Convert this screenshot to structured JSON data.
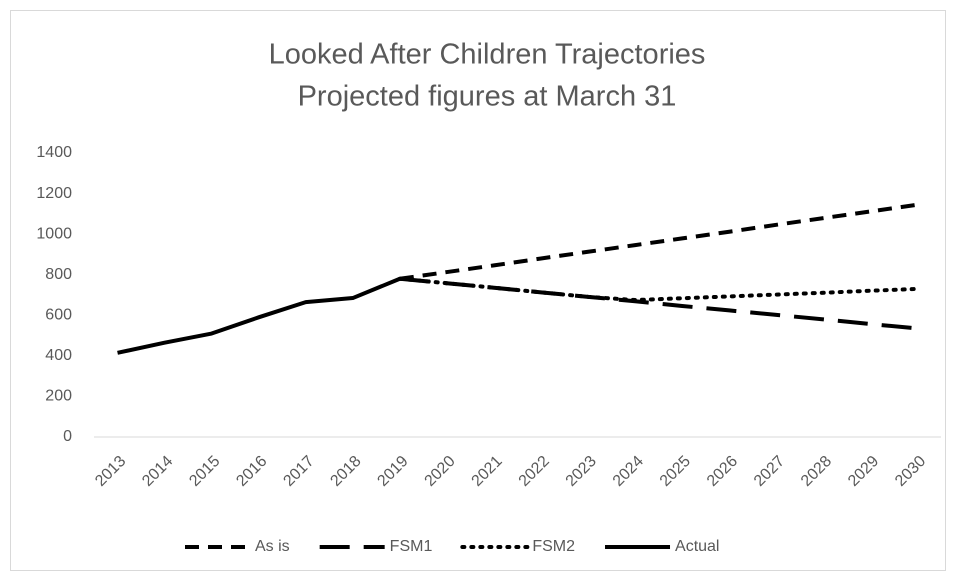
{
  "chart_data": {
    "type": "line",
    "title": "Looked After Children Trajectories",
    "subtitle": "Projected figures at March 31",
    "categories": [
      "2013",
      "2014",
      "2015",
      "2016",
      "2017",
      "2018",
      "2019",
      "2020",
      "2021",
      "2022",
      "2023",
      "2024",
      "2025",
      "2026",
      "2027",
      "2028",
      "2029",
      "2030"
    ],
    "series": [
      {
        "name": "As is",
        "color": "#000000",
        "dash": "dash",
        "values": [
          null,
          null,
          null,
          null,
          null,
          null,
          780,
          813,
          846,
          880,
          913,
          946,
          979,
          1012,
          1046,
          1079,
          1112,
          1145
        ]
      },
      {
        "name": "FSM1",
        "color": "#000000",
        "dash": "longdash",
        "values": [
          null,
          null,
          null,
          null,
          null,
          null,
          780,
          758,
          736,
          713,
          691,
          669,
          646,
          624,
          602,
          580,
          557,
          535
        ]
      },
      {
        "name": "FSM2",
        "color": "#000000",
        "dash": "dot",
        "values": [
          null,
          null,
          null,
          null,
          null,
          null,
          780,
          758,
          736,
          713,
          691,
          675,
          684,
          693,
          702,
          711,
          721,
          730
        ]
      },
      {
        "name": "Actual",
        "color": "#000000",
        "dash": "solid",
        "values": [
          415,
          465,
          510,
          590,
          665,
          685,
          780,
          null,
          null,
          null,
          null,
          null,
          null,
          null,
          null,
          null,
          null,
          null
        ]
      }
    ],
    "ylim": [
      0,
      1400
    ],
    "yticks": [
      0,
      200,
      400,
      600,
      800,
      1000,
      1200,
      1400
    ],
    "grid": false,
    "legend": "bottom"
  }
}
